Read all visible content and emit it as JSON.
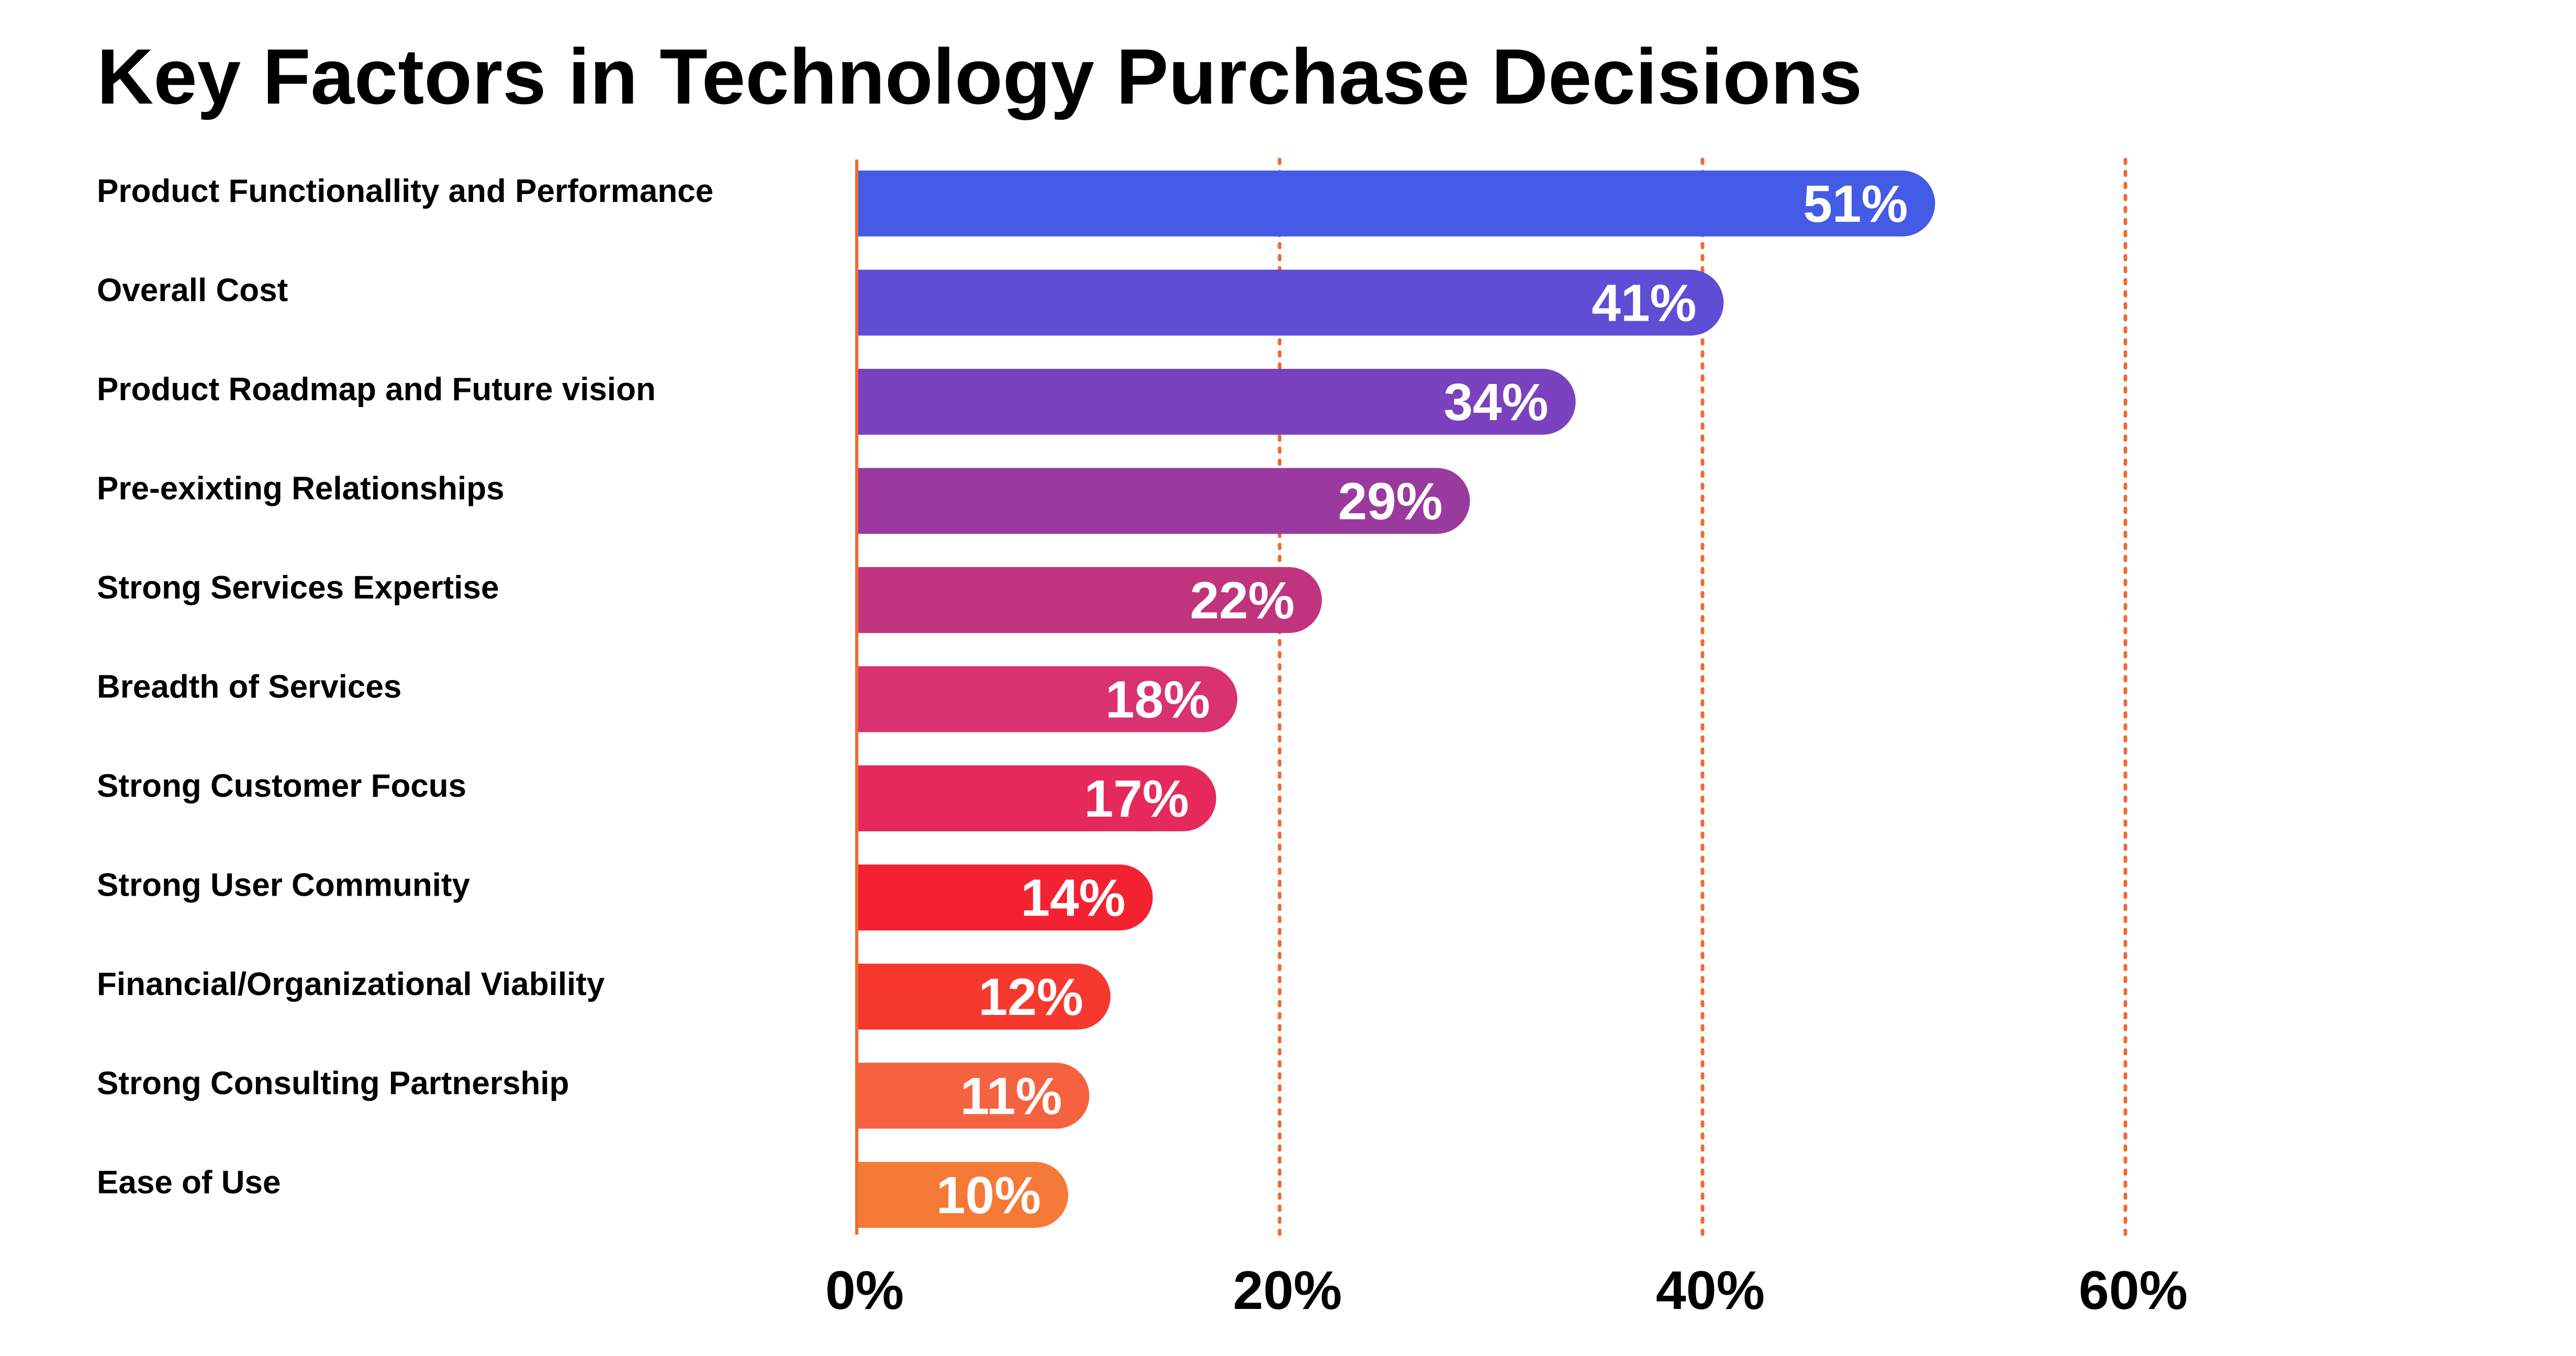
{
  "chart_data": {
    "type": "bar",
    "orientation": "horizontal",
    "title": "Key Factors in Technology Purchase Decisions",
    "categories": [
      "Product Functionallity and Performance",
      "Overall Cost",
      "Product Roadmap and Future vision",
      "Pre-exixting Relationships",
      "Strong Services Expertise",
      "Breadth of Services",
      "Strong Customer Focus",
      "Strong User Community",
      "Financial/Organizational Viability",
      "Strong Consulting Partnership",
      "Ease of Use"
    ],
    "values": [
      51,
      41,
      34,
      29,
      22,
      18,
      17,
      14,
      12,
      11,
      10
    ],
    "value_labels": [
      "51%",
      "41%",
      "34%",
      "29%",
      "22%",
      "18%",
      "17%",
      "14%",
      "12%",
      "11%",
      "10%"
    ],
    "colors": [
      "#445BE6",
      "#5E4ED6",
      "#7A42BE",
      "#9A3A9F",
      "#C0347E",
      "#D83271",
      "#E52A5B",
      "#F32230",
      "#F6382E",
      "#F5623F",
      "#F57A38"
    ],
    "xticks": [
      0,
      20,
      40,
      60
    ],
    "xtick_labels": [
      "0%",
      "20%",
      "40%",
      "60%"
    ],
    "xlim": [
      0,
      60
    ],
    "grid": {
      "vertical": true,
      "style": "dotted",
      "color": "#F26A2E"
    },
    "xlabel": "",
    "ylabel": ""
  }
}
